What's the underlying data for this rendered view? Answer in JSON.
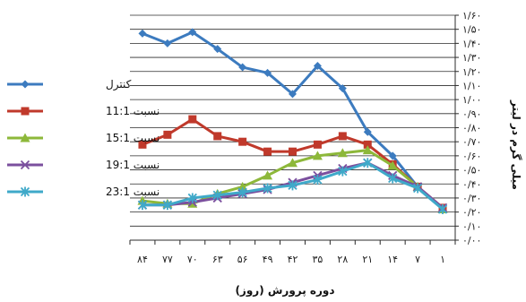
{
  "chart_data": {
    "type": "line",
    "x": [
      "۸۴",
      "۷۷",
      "۷۰",
      "۶۳",
      "۵۶",
      "۴۹",
      "۴۲",
      "۳۵",
      "۲۸",
      "۲۱",
      "۱۴",
      "۷",
      "۱"
    ],
    "xlabel": "دوره پرورش (روز)",
    "ylabel": "میلی گرم در لیتر",
    "ylim": [
      0,
      1.6
    ],
    "y_ticks": [
      "۰/۰۰",
      "۰/۱۰",
      "۰/۲۰",
      "۰/۳۰",
      "۰/۴۰",
      "۰/۵۰",
      "۰/۶۰",
      "۰/۷۰",
      "۰/۸۰",
      "۰/۹۰",
      "۱/۰۰",
      "۱/۱۰",
      "۱/۲۰",
      "۱/۳۰",
      "۱/۴۰",
      "۱/۵۰",
      "۱/۶۰"
    ],
    "grid": true,
    "legend_position": "left",
    "series": [
      {
        "name": "کنترل",
        "color": "#3c7bbf",
        "marker": "diamond",
        "values": [
          1.47,
          1.4,
          1.48,
          1.36,
          1.23,
          1.19,
          1.04,
          1.24,
          1.08,
          0.77,
          0.6,
          0.38,
          0.23
        ]
      },
      {
        "name": "نسبت 11:1",
        "color": "#c0392b",
        "marker": "square",
        "values": [
          0.68,
          0.75,
          0.86,
          0.74,
          0.7,
          0.63,
          0.63,
          0.68,
          0.74,
          0.68,
          0.54,
          0.38,
          0.23
        ]
      },
      {
        "name": "نسبت 15:1",
        "color": "#8db83a",
        "marker": "triangle",
        "values": [
          0.28,
          0.26,
          0.26,
          0.33,
          0.38,
          0.46,
          0.55,
          0.6,
          0.62,
          0.64,
          0.53,
          0.38,
          0.22
        ]
      },
      {
        "name": "نسبت 19:1",
        "color": "#7b4f9e",
        "marker": "x",
        "values": [
          0.25,
          0.25,
          0.27,
          0.3,
          0.33,
          0.36,
          0.41,
          0.46,
          0.51,
          0.55,
          0.46,
          0.38,
          0.23
        ]
      },
      {
        "name": "نسبت 23:1",
        "color": "#3fa9c9",
        "marker": "asterisk",
        "values": [
          0.25,
          0.25,
          0.3,
          0.32,
          0.34,
          0.37,
          0.39,
          0.43,
          0.49,
          0.55,
          0.44,
          0.37,
          0.22
        ]
      }
    ]
  }
}
